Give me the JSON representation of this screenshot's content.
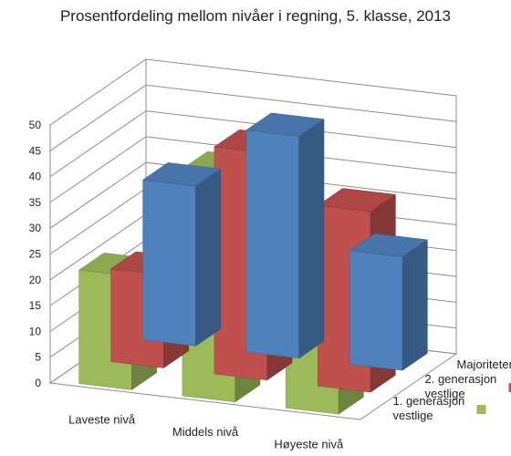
{
  "chart_data": {
    "type": "bar",
    "title": "Prosentfordeling mellom nivåer i regning, 5. klasse, 2013",
    "categories": [
      "Laveste nivå",
      "Middels nivå",
      "Høyeste nivå"
    ],
    "series": [
      {
        "name": "Majoriteten",
        "values": [
          22,
          44,
          23
        ],
        "color": "#9BBB59"
      },
      {
        "name": "2. generasjon vestlige",
        "values": [
          18,
          44,
          35
        ],
        "color": "#C0504D"
      },
      {
        "name": "1. generasjon vestlige",
        "values": [
          31,
          43,
          22
        ],
        "color": "#4F81BD"
      }
    ],
    "ylim": [
      0,
      50
    ],
    "yticks": [
      0,
      5,
      10,
      15,
      20,
      25,
      30,
      35,
      40,
      45,
      50
    ],
    "legend_lines": [
      [
        "Majoriteten"
      ],
      [
        "2. generasjon",
        "vestlige"
      ],
      [
        "1. generasjon",
        "vestlige"
      ]
    ],
    "grid": true,
    "legend_position": "right"
  }
}
